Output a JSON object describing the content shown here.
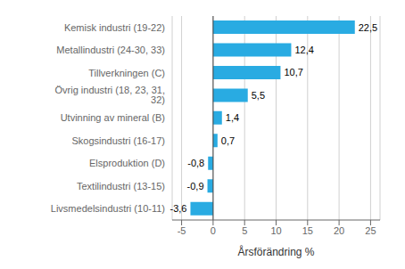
{
  "chart_data": {
    "type": "bar",
    "orientation": "horizontal",
    "categories": [
      "Kemisk industri (19-22)",
      "Metallindustri (24-30, 33)",
      "Tillverkningen (C)",
      "Övrig industri (18, 23, 31, 32)",
      "Utvinning av mineral (B)",
      "Skogsindustri (16-17)",
      "Elsproduktion (D)",
      "Textilindustri (13-15)",
      "Livsmedelsindustri (10-11)"
    ],
    "values": [
      22.5,
      12.4,
      10.7,
      5.5,
      1.4,
      0.7,
      -0.8,
      -0.9,
      -3.6
    ],
    "value_labels": [
      "22,5",
      "12,4",
      "10,7",
      "5,5",
      "1,4",
      "0,7",
      "-0,8",
      "-0,9",
      "-3,6"
    ],
    "data_labels": true,
    "color": "#29abe2",
    "xlabel": "Årsförändring %",
    "xlim": [
      -6.5,
      26.5
    ],
    "xticks": [
      -5,
      0,
      5,
      10,
      15,
      20,
      25
    ],
    "grid": true
  }
}
